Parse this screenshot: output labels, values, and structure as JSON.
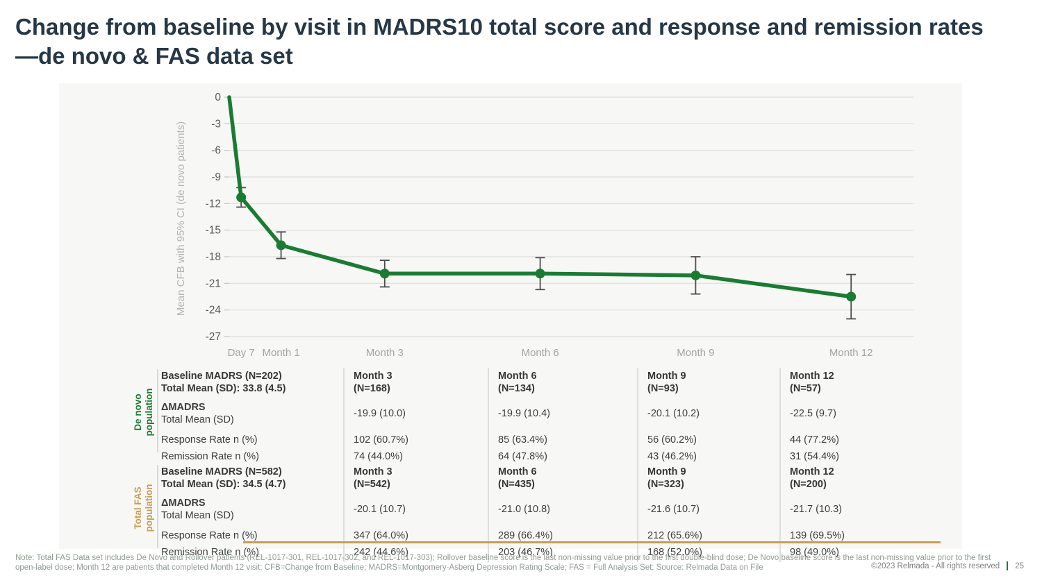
{
  "slide": {
    "title": "Change from baseline by visit in MADRS10 total score and response and remission rates—de novo & FAS data set",
    "footnote": "Note: Total FAS Data set includes De Novo and Rollover patients (REL-1017-301, REL-1017-302, and REL-1017-303); Rollover baseline score is the last non-missing value prior to the first double-blind dose; De Novo baseline score is the last non-missing value prior to the first open-label dose; Month 12 are patients that completed Month 12 visit; CFB=Change from Baseline; MADRS=Montgomery-Asberg Depression Rating Scale; FAS = Full Analysis Set; Source: Relmada Data on File",
    "copyright": "©2023 Relmada - All rights reserved",
    "page_number": "25"
  },
  "colors": {
    "accent_green": "#1a7b33",
    "accent_gold": "#c79d55",
    "title_text": "#263746",
    "gridline": "#dcdcdc",
    "x_axis_text": "#a3a3a3",
    "y_tick_text": "#595959",
    "y_axis_title_text": "#b3b3b3",
    "error_bar": "#4d4d4d",
    "panel_bg": "#f7f7f5"
  },
  "chart_data": {
    "type": "line",
    "title": "",
    "xlabel": "",
    "ylabel": "Mean CFB with 95% CI (de novo patients)",
    "ylim": [
      -27,
      0
    ],
    "yticks": [
      0,
      -3,
      -6,
      -9,
      -12,
      -15,
      -18,
      -21,
      -24,
      -27
    ],
    "x_unit": "months",
    "x_tick_months": [
      0.23,
      1,
      3,
      6,
      9,
      12
    ],
    "x_tick_labels": [
      "Day 7",
      "Month 1",
      "Month 3",
      "Month 6",
      "Month 9",
      "Month 12"
    ],
    "grid": true,
    "legend": false,
    "series": [
      {
        "name": "Mean CFB with 95% CI (de novo patients)",
        "points": [
          {
            "label": "Baseline",
            "x_month": 0,
            "y": 0,
            "ci": null,
            "marker": false
          },
          {
            "label": "Day 7",
            "x_month": 0.23,
            "y": -11.3,
            "ci": 1.1,
            "marker": true
          },
          {
            "label": "Month 1",
            "x_month": 1,
            "y": -16.7,
            "ci": 1.5,
            "marker": true
          },
          {
            "label": "Month 3",
            "x_month": 3,
            "y": -19.9,
            "ci": 1.5,
            "marker": true
          },
          {
            "label": "Month 6",
            "x_month": 6,
            "y": -19.9,
            "ci": 1.8,
            "marker": true
          },
          {
            "label": "Month 9",
            "x_month": 9,
            "y": -20.1,
            "ci": 2.1,
            "marker": true
          },
          {
            "label": "Month 12",
            "x_month": 12,
            "y": -22.5,
            "ci": 2.5,
            "marker": true
          }
        ]
      }
    ]
  },
  "tables": {
    "row_labels": {
      "delta_bold": "ΔMADRS",
      "delta_sub": "Total Mean (SD)",
      "response": "Response Rate n (%)",
      "remission": "Remission Rate n (%)"
    },
    "populations": [
      {
        "label_line1": "De novo",
        "label_line2": "population",
        "accent": "#1a7b33",
        "baseline_line1": "Baseline MADRS (N=202)",
        "baseline_line2": "Total Mean (SD): 33.8 (4.5)",
        "columns": [
          {
            "header_line1": "Month 3",
            "header_line2": "(N=168)",
            "delta": "-19.9 (10.0)",
            "response": "102 (60.7%)",
            "remission": "74 (44.0%)"
          },
          {
            "header_line1": "Month 6",
            "header_line2": "(N=134)",
            "delta": "-19.9 (10.4)",
            "response": "85 (63.4%)",
            "remission": "64 (47.8%)"
          },
          {
            "header_line1": "Month 9",
            "header_line2": "(N=93)",
            "delta": "-20.1 (10.2)",
            "response": "56 (60.2%)",
            "remission": "43 (46.2%)"
          },
          {
            "header_line1": "Month 12",
            "header_line2": "(N=57)",
            "delta": "-22.5 (9.7)",
            "response": "44 (77.2%)",
            "remission": "31 (54.4%)"
          }
        ]
      },
      {
        "label_line1": "Total FAS",
        "label_line2": "population",
        "accent": "#c79d55",
        "baseline_line1": "Baseline MADRS (N=582)",
        "baseline_line2": "Total Mean (SD): 34.5 (4.7)",
        "columns": [
          {
            "header_line1": "Month 3",
            "header_line2": "(N=542)",
            "delta": "-20.1 (10.7)",
            "response": "347 (64.0%)",
            "remission": "242 (44.6%)"
          },
          {
            "header_line1": "Month 6",
            "header_line2": "(N=435)",
            "delta": "-21.0 (10.8)",
            "response": "289 (66.4%)",
            "remission": "203 (46.7%)"
          },
          {
            "header_line1": "Month 9",
            "header_line2": "(N=323)",
            "delta": "-21.6 (10.7)",
            "response": "212 (65.6%)",
            "remission": "168 (52.0%)"
          },
          {
            "header_line1": "Month 12",
            "header_line2": "(N=200)",
            "delta": "-21.7 (10.3)",
            "response": "139 (69.5%)",
            "remission": "98 (49.0%)"
          }
        ]
      }
    ]
  }
}
